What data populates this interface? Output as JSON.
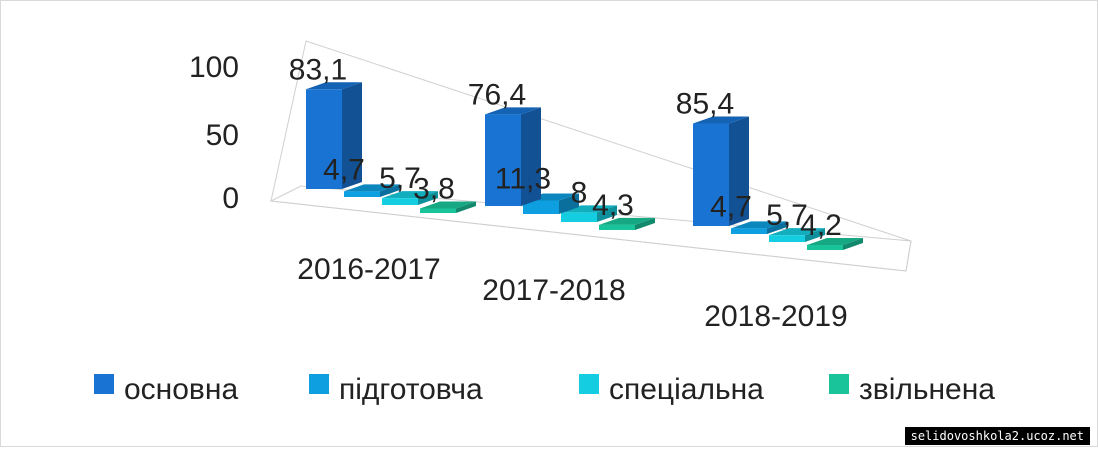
{
  "chart_data": {
    "type": "bar",
    "categories": [
      "2016-2017",
      "2017-2018",
      "2018-2019"
    ],
    "series": [
      {
        "name": "основна",
        "values": [
          "83,1",
          "76,4",
          "85,4"
        ],
        "color": "#1873d3"
      },
      {
        "name": "підготовча",
        "values": [
          "4,7",
          "11,3",
          "4,7"
        ],
        "color": "#0e9fe0"
      },
      {
        "name": "спеціальна",
        "values": [
          "5,7",
          "8",
          "5,7"
        ],
        "color": "#15cde0"
      },
      {
        "name": "звільнена",
        "values": [
          "3,8",
          "4,3",
          "4,2"
        ],
        "color": "#1ac49a"
      }
    ],
    "yticks": [
      "0",
      "50",
      "100"
    ],
    "ylim": [
      0,
      100
    ],
    "legend_position": "bottom"
  },
  "watermark": "selidovoshkola2.ucoz.net"
}
